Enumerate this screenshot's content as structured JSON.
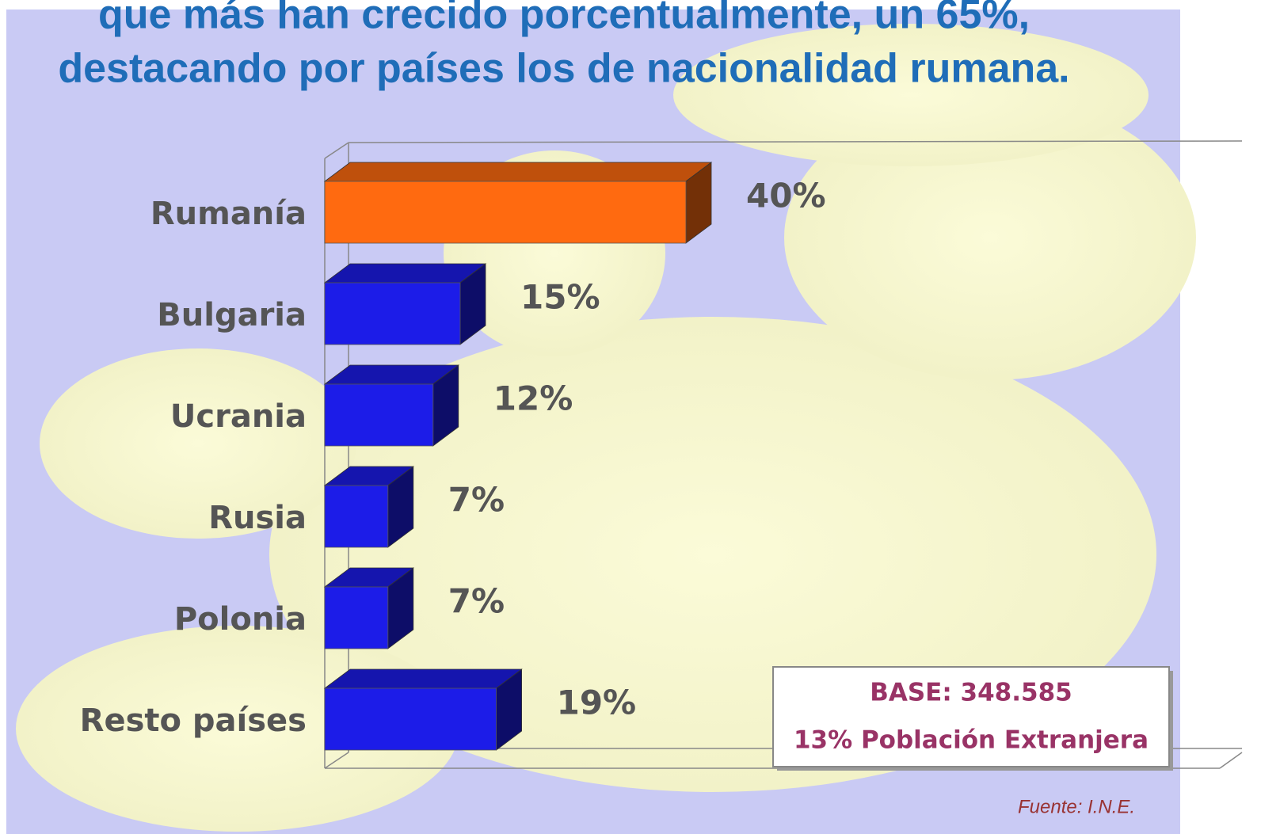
{
  "chart_data": {
    "type": "bar",
    "orientation": "horizontal",
    "title": [
      "que más han crecido porcentualmente, un 65%,",
      "destacando por países los de nacionalidad rumana."
    ],
    "categories": [
      "Rumanía",
      "Bulgaria",
      "Ucrania",
      "Rusia",
      "Polonia",
      "Resto países"
    ],
    "values": [
      40,
      15,
      12,
      7,
      7,
      19
    ],
    "value_labels": [
      "40%",
      "15%",
      "12%",
      "7%",
      "7%",
      "19%"
    ],
    "colors": [
      "#ff6a10",
      "#1c1ce8",
      "#1c1ce8",
      "#1c1ce8",
      "#1c1ce8",
      "#1c1ce8"
    ],
    "xlim": [
      0,
      100
    ],
    "annotations": [
      "BASE: 348.585",
      "13% Población Extranjera",
      "Fuente: I.N.E."
    ]
  }
}
